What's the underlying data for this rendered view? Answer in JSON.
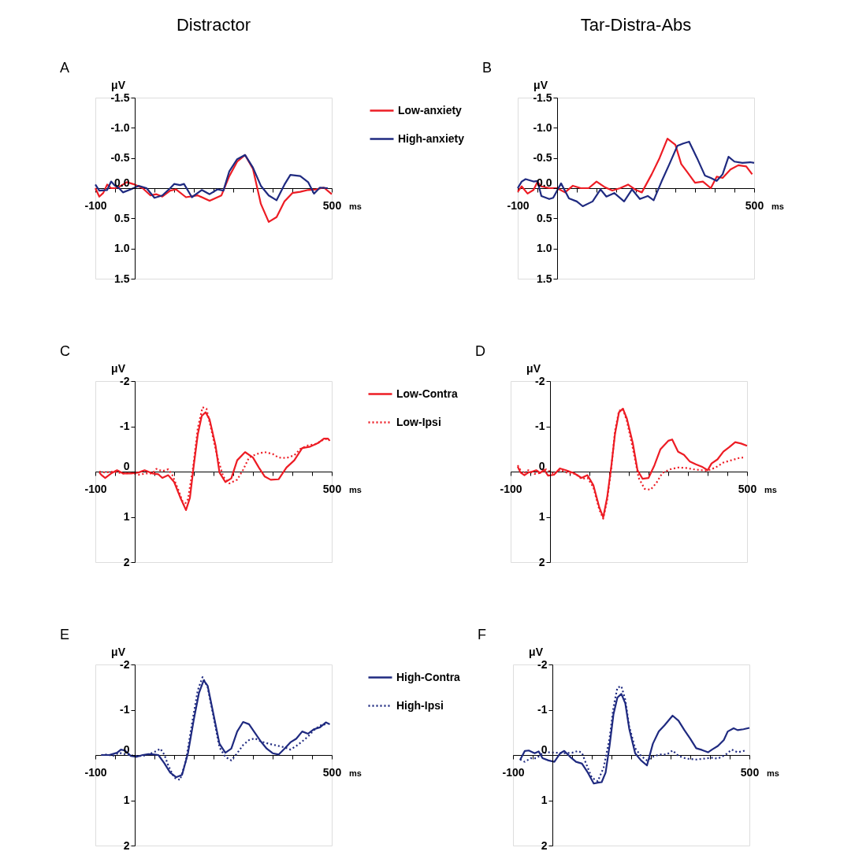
{
  "chart_data": [
    {
      "type": "line",
      "title": "Distractor",
      "annotations": [
        "A"
      ],
      "xlabel": "ms",
      "ylabel": "μV",
      "xlim": [
        -100,
        500
      ],
      "ylim": [
        1.5,
        -1.5
      ],
      "xticks": [
        -100,
        {
          "value": -50,
          "label": null
        },
        {
          "value": 0,
          "label": null
        },
        {
          "value": 50,
          "label": null
        },
        {
          "value": 100,
          "label": null
        },
        {
          "value": 150,
          "label": null
        },
        {
          "value": 200,
          "label": null
        },
        {
          "value": 250,
          "label": null
        },
        {
          "value": 300,
          "label": null
        },
        {
          "value": 350,
          "label": null
        },
        {
          "value": 400,
          "label": null
        },
        {
          "value": 450,
          "label": null
        },
        500
      ],
      "yticks": [
        -1.5,
        {
          "value": -1,
          "label": "-1.0"
        },
        -0.5,
        {
          "value": 0,
          "label": "0.0"
        },
        0.5,
        {
          "value": 1,
          "label": "1.0"
        },
        1.5
      ],
      "grid": false,
      "legend": "right",
      "series": [
        {
          "name": "Low-anxiety",
          "color": "#ed1c24",
          "line_style": "solid",
          "x": [
            -100,
            -90,
            -80,
            -70,
            -60,
            -50,
            -40,
            -20,
            0,
            20,
            40,
            55,
            70,
            90,
            105,
            130,
            160,
            190,
            220,
            240,
            260,
            280,
            300,
            320,
            340,
            360,
            380,
            400,
            420,
            440,
            460,
            480,
            500
          ],
          "values": [
            0,
            0.14,
            0.08,
            -0.06,
            0,
            0,
            -0.02,
            -0.1,
            -0.06,
            0,
            0.12,
            0.1,
            0.14,
            0.04,
            0.02,
            0.15,
            0.12,
            0.21,
            0.12,
            -0.2,
            -0.44,
            -0.55,
            -0.32,
            0.26,
            0.56,
            0.48,
            0.22,
            0.08,
            0.06,
            0.03,
            0.02,
            -0.01,
            0.1
          ]
        },
        {
          "name": "High-anxiety",
          "color": "#1f2a80",
          "line_style": "solid",
          "x": [
            -100,
            -90,
            -70,
            -60,
            -50,
            -40,
            -30,
            -10,
            10,
            30,
            50,
            70,
            90,
            100,
            115,
            125,
            145,
            170,
            190,
            210,
            225,
            240,
            260,
            280,
            300,
            320,
            340,
            360,
            380,
            395,
            420,
            440,
            455,
            470,
            490
          ],
          "values": [
            -0.06,
            0.04,
            0.03,
            -0.11,
            -0.04,
            0,
            0.07,
            0.02,
            -0.04,
            0,
            0.16,
            0.12,
            0,
            -0.07,
            -0.05,
            -0.07,
            0.15,
            0.03,
            0.1,
            0.02,
            0.04,
            -0.28,
            -0.48,
            -0.55,
            -0.34,
            -0.04,
            0.12,
            0.2,
            -0.06,
            -0.22,
            -0.2,
            -0.1,
            0.09,
            -0.01,
            0
          ]
        }
      ]
    },
    {
      "type": "line",
      "title": "Tar-Distra-Abs",
      "annotations": [
        "B"
      ],
      "xlabel": "ms",
      "ylabel": "μV",
      "xlim": [
        -100,
        500
      ],
      "ylim": [
        1.5,
        -1.5
      ],
      "xticks": [
        -100,
        {
          "value": -50,
          "label": null
        },
        {
          "value": 0,
          "label": null
        },
        {
          "value": 50,
          "label": null
        },
        {
          "value": 100,
          "label": null
        },
        {
          "value": 150,
          "label": null
        },
        {
          "value": 200,
          "label": null
        },
        {
          "value": 250,
          "label": null
        },
        {
          "value": 300,
          "label": null
        },
        {
          "value": 350,
          "label": null
        },
        {
          "value": 400,
          "label": null
        },
        {
          "value": 450,
          "label": null
        },
        500
      ],
      "yticks": [
        -1.5,
        {
          "value": -1,
          "label": "-1.0"
        },
        -0.5,
        {
          "value": 0,
          "label": "0.0"
        },
        0.5,
        {
          "value": 1,
          "label": "1.0"
        },
        1.5
      ],
      "grid": false,
      "series": [
        {
          "color": "#ed1c24",
          "line_style": "solid",
          "x": [
            -100,
            -90,
            -75,
            -60,
            -50,
            -40,
            -20,
            0,
            20,
            40,
            60,
            80,
            100,
            120,
            140,
            160,
            180,
            200,
            215,
            240,
            260,
            280,
            300,
            315,
            330,
            350,
            370,
            390,
            405,
            420,
            440,
            460,
            480,
            495
          ],
          "values": [
            0.06,
            -0.03,
            0.09,
            0.03,
            -0.1,
            -0.03,
            0,
            0,
            0.07,
            -0.04,
            0,
            0,
            -0.11,
            -0.02,
            0.04,
            0,
            -0.06,
            0.03,
            0.07,
            -0.23,
            -0.5,
            -0.82,
            -0.72,
            -0.4,
            -0.27,
            -0.09,
            -0.11,
            0,
            -0.19,
            -0.17,
            -0.31,
            -0.38,
            -0.36,
            -0.23
          ]
        },
        {
          "color": "#1f2a80",
          "line_style": "solid",
          "x": [
            -100,
            -90,
            -80,
            -60,
            -50,
            -40,
            -20,
            -10,
            10,
            30,
            50,
            65,
            90,
            110,
            125,
            145,
            170,
            190,
            210,
            230,
            245,
            265,
            285,
            305,
            320,
            335,
            355,
            375,
            390,
            405,
            420,
            435,
            450,
            470,
            490,
            500
          ],
          "values": [
            0,
            -0.11,
            -0.15,
            -0.11,
            -0.12,
            0.13,
            0.18,
            0.16,
            -0.08,
            0.17,
            0.22,
            0.3,
            0.22,
            0.02,
            0.14,
            0.08,
            0.22,
            0.02,
            0.18,
            0.13,
            0.2,
            -0.11,
            -0.4,
            -0.7,
            -0.74,
            -0.77,
            -0.5,
            -0.21,
            -0.17,
            -0.12,
            -0.23,
            -0.52,
            -0.44,
            -0.42,
            -0.43,
            -0.42
          ]
        }
      ]
    },
    {
      "type": "line",
      "annotations": [
        "C"
      ],
      "xlabel": "ms",
      "ylabel": "μV",
      "xlim": [
        -100,
        500
      ],
      "ylim": [
        2,
        -2
      ],
      "xticks": [
        -100,
        {
          "value": -50,
          "label": null
        },
        {
          "value": 0,
          "label": null
        },
        {
          "value": 50,
          "label": null
        },
        {
          "value": 100,
          "label": null
        },
        {
          "value": 150,
          "label": null
        },
        {
          "value": 200,
          "label": null
        },
        {
          "value": 250,
          "label": null
        },
        {
          "value": 300,
          "label": null
        },
        {
          "value": 350,
          "label": null
        },
        {
          "value": 400,
          "label": null
        },
        {
          "value": 450,
          "label": null
        },
        500
      ],
      "yticks": [
        -2,
        -1,
        0,
        1,
        2
      ],
      "grid": false,
      "legend": "right",
      "series": [
        {
          "name": "Low-Contra",
          "color": "#ed1c24",
          "line_style": "solid",
          "x": [
            -90,
            -85,
            -75,
            -60,
            -45,
            -30,
            -10,
            10,
            25,
            45,
            60,
            70,
            85,
            100,
            115,
            130,
            140,
            150,
            160,
            170,
            180,
            190,
            205,
            215,
            230,
            245,
            260,
            280,
            300,
            315,
            330,
            345,
            365,
            385,
            405,
            425,
            445,
            465,
            480,
            490,
            495
          ],
          "values": [
            0.02,
            0.07,
            0.14,
            0.04,
            -0.03,
            0.04,
            0.04,
            0.02,
            -0.03,
            0.04,
            0.06,
            0.14,
            0.08,
            0.23,
            0.56,
            0.85,
            0.58,
            -0.15,
            -0.82,
            -1.23,
            -1.31,
            -1.15,
            -0.58,
            0.02,
            0.23,
            0.15,
            -0.25,
            -0.43,
            -0.31,
            -0.09,
            0.11,
            0.18,
            0.17,
            -0.09,
            -0.25,
            -0.52,
            -0.55,
            -0.63,
            -0.73,
            -0.73,
            -0.68
          ]
        },
        {
          "name": "Low-Ipsi",
          "color": "#ed1c24",
          "line_style": "dotted",
          "x": [
            -90,
            -75,
            -55,
            -30,
            -10,
            10,
            30,
            45,
            55,
            70,
            85,
            95,
            110,
            125,
            135,
            148,
            160,
            172,
            182,
            195,
            210,
            225,
            240,
            260,
            275,
            290,
            310,
            330,
            350,
            365,
            385,
            405,
            420,
            440,
            460,
            480,
            490
          ],
          "values": [
            0,
            0.02,
            0,
            0.04,
            0.03,
            0.07,
            0.04,
            0.04,
            -0.06,
            -0.01,
            -0.05,
            0.07,
            0.39,
            0.75,
            0.61,
            -0.09,
            -0.96,
            -1.42,
            -1.39,
            -0.9,
            -0.31,
            0.12,
            0.26,
            0.18,
            -0.04,
            -0.31,
            -0.39,
            -0.43,
            -0.39,
            -0.31,
            -0.3,
            -0.36,
            -0.5,
            -0.58,
            -0.61,
            -0.71,
            -0.73
          ]
        }
      ]
    },
    {
      "type": "line",
      "annotations": [
        "D"
      ],
      "xlabel": "ms",
      "ylabel": "μV",
      "xlim": [
        -100,
        500
      ],
      "ylim": [
        2,
        -2
      ],
      "xticks": [
        -100,
        {
          "value": -50,
          "label": null
        },
        {
          "value": 0,
          "label": null
        },
        {
          "value": 50,
          "label": null
        },
        {
          "value": 100,
          "label": null
        },
        {
          "value": 150,
          "label": null
        },
        {
          "value": 200,
          "label": null
        },
        {
          "value": 250,
          "label": null
        },
        {
          "value": 300,
          "label": null
        },
        {
          "value": 350,
          "label": null
        },
        {
          "value": 400,
          "label": null
        },
        {
          "value": 450,
          "label": null
        },
        500
      ],
      "yticks": [
        -2,
        -1,
        0,
        1,
        2
      ],
      "grid": false,
      "series": [
        {
          "color": "#ed1c24",
          "line_style": "solid",
          "x": [
            -82,
            -75,
            -65,
            -55,
            -45,
            -35,
            -25,
            -15,
            -5,
            10,
            25,
            40,
            60,
            80,
            95,
            110,
            125,
            135,
            145,
            155,
            165,
            175,
            185,
            195,
            210,
            222,
            235,
            250,
            265,
            280,
            300,
            310,
            325,
            340,
            355,
            370,
            385,
            400,
            410,
            425,
            440,
            455,
            470,
            485,
            500
          ],
          "values": [
            -0.11,
            0.02,
            0.08,
            0.02,
            0,
            -0.03,
            0.03,
            -0.04,
            0.09,
            0.07,
            -0.07,
            -0.03,
            0.03,
            0.14,
            0.08,
            0.3,
            0.79,
            1.01,
            0.57,
            -0.08,
            -0.84,
            -1.31,
            -1.39,
            -1.17,
            -0.63,
            -0.03,
            0.16,
            0.14,
            -0.14,
            -0.49,
            -0.68,
            -0.71,
            -0.44,
            -0.37,
            -0.22,
            -0.16,
            -0.11,
            -0.03,
            -0.18,
            -0.27,
            -0.44,
            -0.54,
            -0.65,
            -0.62,
            -0.57
          ]
        },
        {
          "color": "#ed1c24",
          "line_style": "dotted",
          "x": [
            -82,
            -70,
            -55,
            -40,
            -25,
            -10,
            10,
            25,
            45,
            65,
            80,
            95,
            110,
            125,
            135,
            145,
            155,
            165,
            175,
            185,
            195,
            210,
            225,
            240,
            255,
            270,
            285,
            305,
            325,
            345,
            365,
            385,
            400,
            420,
            440,
            460,
            480,
            490
          ],
          "values": [
            -0.14,
            0.05,
            -0.03,
            0.05,
            0.03,
            -0.05,
            0.05,
            -0.04,
            0.03,
            0.05,
            0.16,
            0.14,
            0.35,
            0.84,
            1.04,
            0.63,
            -0.05,
            -0.9,
            -1.34,
            -1.38,
            -1.12,
            -0.52,
            0.14,
            0.38,
            0.4,
            0.25,
            0.03,
            -0.05,
            -0.09,
            -0.08,
            -0.05,
            -0.03,
            -0.02,
            -0.09,
            -0.2,
            -0.25,
            -0.3,
            -0.31
          ]
        }
      ]
    },
    {
      "type": "line",
      "annotations": [
        "E"
      ],
      "xlabel": "ms",
      "ylabel": "μV",
      "xlim": [
        -100,
        500
      ],
      "ylim": [
        2,
        -2
      ],
      "xticks": [
        -100,
        {
          "value": -50,
          "label": null
        },
        {
          "value": 0,
          "label": null
        },
        {
          "value": 50,
          "label": null
        },
        {
          "value": 100,
          "label": null
        },
        {
          "value": 150,
          "label": null
        },
        {
          "value": 200,
          "label": null
        },
        {
          "value": 250,
          "label": null
        },
        {
          "value": 300,
          "label": null
        },
        {
          "value": 350,
          "label": null
        },
        {
          "value": 400,
          "label": null
        },
        {
          "value": 450,
          "label": null
        },
        500
      ],
      "yticks": [
        -2,
        -1,
        0,
        1,
        2
      ],
      "grid": false,
      "legend": "right",
      "series": [
        {
          "name": "High-Contra",
          "color": "#1f2a80",
          "line_style": "solid",
          "x": [
            -85,
            -65,
            -45,
            -35,
            -25,
            -10,
            5,
            20,
            35,
            50,
            60,
            75,
            90,
            105,
            120,
            135,
            150,
            163,
            175,
            185,
            200,
            215,
            230,
            245,
            260,
            275,
            290,
            305,
            320,
            335,
            350,
            365,
            380,
            395,
            410,
            425,
            440,
            455,
            470,
            485,
            495
          ],
          "values": [
            0,
            0,
            -0.05,
            -0.12,
            -0.1,
            0.02,
            0.04,
            0,
            -0.02,
            -0.01,
            0,
            0.18,
            0.39,
            0.49,
            0.44,
            -0.04,
            -0.79,
            -1.37,
            -1.65,
            -1.53,
            -0.89,
            -0.25,
            -0.05,
            -0.14,
            -0.52,
            -0.73,
            -0.68,
            -0.49,
            -0.3,
            -0.14,
            -0.04,
            -0.01,
            -0.14,
            -0.28,
            -0.36,
            -0.52,
            -0.47,
            -0.57,
            -0.61,
            -0.72,
            -0.68
          ]
        },
        {
          "name": "High-Ipsi",
          "color": "#1f2a80",
          "line_style": "dotted",
          "x": [
            -85,
            -70,
            -55,
            -40,
            -20,
            0,
            20,
            40,
            55,
            65,
            75,
            85,
            100,
            115,
            130,
            145,
            160,
            172,
            185,
            200,
            215,
            230,
            245,
            260,
            275,
            290,
            305,
            320,
            340,
            360,
            380,
            395,
            410,
            425,
            440,
            455,
            470,
            485
          ],
          "values": [
            0,
            -0.01,
            0.02,
            -0.05,
            -0.01,
            0.02,
            0.02,
            -0.03,
            -0.09,
            -0.14,
            -0.01,
            0.23,
            0.5,
            0.55,
            0.12,
            -0.68,
            -1.43,
            -1.72,
            -1.5,
            -0.84,
            -0.17,
            0.04,
            0.12,
            -0.04,
            -0.22,
            -0.33,
            -0.37,
            -0.3,
            -0.25,
            -0.21,
            -0.17,
            -0.12,
            -0.2,
            -0.3,
            -0.41,
            -0.55,
            -0.65,
            -0.68
          ]
        }
      ]
    },
    {
      "type": "line",
      "annotations": [
        "F"
      ],
      "xlabel": "ms",
      "ylabel": "μV",
      "xlim": [
        -100,
        500
      ],
      "ylim": [
        2,
        -2
      ],
      "xticks": [
        -100,
        {
          "value": -50,
          "label": null
        },
        {
          "value": 0,
          "label": null
        },
        {
          "value": 50,
          "label": null
        },
        {
          "value": 100,
          "label": null
        },
        {
          "value": 150,
          "label": null
        },
        {
          "value": 200,
          "label": null
        },
        {
          "value": 250,
          "label": null
        },
        {
          "value": 300,
          "label": null
        },
        {
          "value": 350,
          "label": null
        },
        {
          "value": 400,
          "label": null
        },
        {
          "value": 450,
          "label": null
        },
        500
      ],
      "yticks": [
        -2,
        -1,
        0,
        1,
        2
      ],
      "grid": false,
      "series": [
        {
          "color": "#1f2a80",
          "line_style": "solid",
          "x": [
            -82,
            -70,
            -60,
            -45,
            -35,
            -25,
            -10,
            5,
            20,
            30,
            45,
            60,
            75,
            90,
            105,
            115,
            125,
            135,
            145,
            155,
            165,
            175,
            185,
            195,
            210,
            225,
            240,
            255,
            270,
            285,
            305,
            320,
            335,
            350,
            365,
            380,
            395,
            405,
            420,
            435,
            445,
            460,
            470,
            485,
            500
          ],
          "values": [
            0.11,
            -0.09,
            -0.1,
            -0.04,
            -0.08,
            0.07,
            0.12,
            0.15,
            -0.04,
            -0.09,
            0.04,
            0.15,
            0.19,
            0.39,
            0.63,
            0.61,
            0.6,
            0.39,
            -0.2,
            -0.9,
            -1.27,
            -1.35,
            -1.14,
            -0.58,
            -0.04,
            0.12,
            0.23,
            -0.25,
            -0.52,
            -0.66,
            -0.87,
            -0.76,
            -0.55,
            -0.36,
            -0.15,
            -0.11,
            -0.06,
            -0.12,
            -0.2,
            -0.33,
            -0.52,
            -0.59,
            -0.55,
            -0.57,
            -0.6
          ]
        },
        {
          "color": "#1f2a80",
          "line_style": "dotted",
          "x": [
            -82,
            -70,
            -55,
            -40,
            -25,
            -10,
            10,
            30,
            50,
            65,
            75,
            85,
            100,
            115,
            130,
            145,
            155,
            165,
            175,
            185,
            195,
            210,
            225,
            240,
            255,
            270,
            290,
            305,
            320,
            340,
            365,
            385,
            405,
            420,
            440,
            455,
            470,
            490
          ],
          "values": [
            0.1,
            0.15,
            0.07,
            0.07,
            -0.04,
            -0.06,
            -0.05,
            -0.04,
            -0.05,
            -0.09,
            -0.05,
            0.18,
            0.5,
            0.58,
            0.28,
            -0.36,
            -1.06,
            -1.49,
            -1.52,
            -1.22,
            -0.63,
            -0.15,
            0.02,
            0.12,
            0.04,
            -0.01,
            -0.01,
            -0.1,
            0.02,
            0.08,
            0.1,
            0.08,
            0.06,
            0.08,
            -0.01,
            -0.12,
            -0.06,
            -0.1
          ]
        }
      ]
    }
  ]
}
